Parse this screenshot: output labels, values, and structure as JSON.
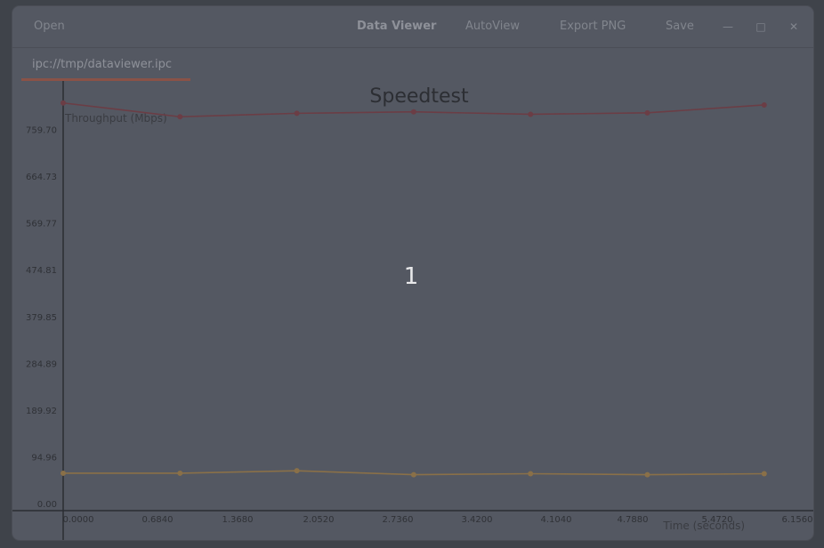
{
  "toolbar": {
    "open_label": "Open",
    "title": "Data Viewer",
    "autoview_label": "AutoView",
    "export_label": "Export PNG",
    "save_label": "Save",
    "minimize_icon": "minimize-icon",
    "maximize_icon": "maximize-icon",
    "close_icon": "close-icon"
  },
  "tab": {
    "label": "ipc://tmp/dataviewer.ipc"
  },
  "overlay_number": "1",
  "colors": {
    "series1": "#6b3d45",
    "series2": "#8a7048",
    "axis": "#2b2d32",
    "bg": "#545862"
  },
  "chart_data": {
    "type": "line",
    "title": "Speedtest",
    "ylabel": "Throughput (Mbps)",
    "xlabel": "Time (seconds)",
    "y_ticks": [
      "0.00",
      "94.96",
      "189.92",
      "284.89",
      "379.85",
      "474.81",
      "569.77",
      "664.73",
      "759.70"
    ],
    "x_ticks": [
      "0",
      "0.0000",
      "0.6840",
      "1.3680",
      "2.0520",
      "2.7360",
      "3.4200",
      "4.1040",
      "4.7880",
      "5.4720",
      "6.1560"
    ],
    "ylim": [
      0,
      854.66
    ],
    "series": [
      {
        "values": [
          [
            0.0,
            828
          ],
          [
            0.684,
            800
          ],
          [
            1.368,
            807
          ],
          [
            2.052,
            810
          ],
          [
            2.736,
            805
          ],
          [
            3.42,
            808
          ],
          [
            4.104,
            824
          ]
        ]
      },
      {
        "values": [
          [
            0.0,
            76
          ],
          [
            0.684,
            76
          ],
          [
            1.368,
            81
          ],
          [
            2.052,
            73
          ],
          [
            2.736,
            75
          ],
          [
            3.42,
            73
          ],
          [
            4.104,
            75
          ]
        ]
      }
    ]
  }
}
